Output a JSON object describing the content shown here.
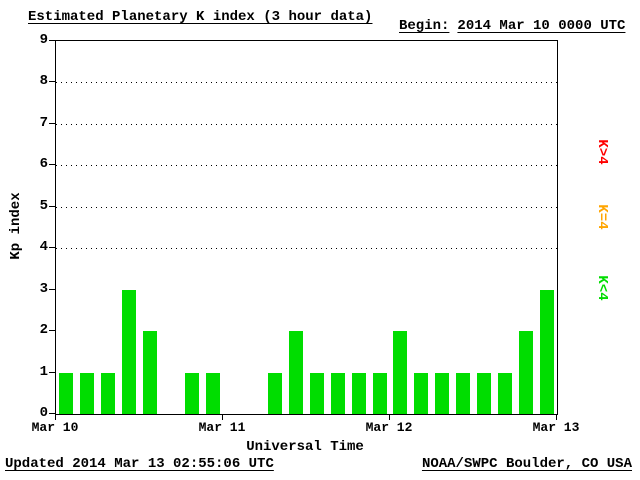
{
  "header": {
    "title": "Estimated Planetary K index (3 hour data)",
    "begin_label": "Begin:",
    "begin_value": "2014 Mar 10 0000 UTC"
  },
  "footer": {
    "updated": "Updated 2014 Mar 13 02:55:06 UTC",
    "source": "NOAA/SWPC Boulder, CO USA"
  },
  "legend": {
    "items": [
      {
        "label": "K>4",
        "color": "#ff0000"
      },
      {
        "label": "K=4",
        "color": "#ffa500"
      },
      {
        "label": "K<4",
        "color": "#00dd00"
      }
    ]
  },
  "chart_data": {
    "type": "bar",
    "title": "Estimated Planetary K index (3 hour data)",
    "xlabel": "Universal Time",
    "ylabel": "Kp index",
    "ylim": [
      0,
      9
    ],
    "yticks": [
      0,
      1,
      2,
      3,
      4,
      5,
      6,
      7,
      8,
      9
    ],
    "gridlines_y": [
      4,
      5,
      6,
      7,
      8
    ],
    "x_tick_labels": [
      "Mar 10",
      "Mar 11",
      "Mar 12",
      "Mar 13"
    ],
    "begin": "2014 Mar 10 0000 UTC",
    "slot_hours": 3,
    "values": [
      1,
      1,
      1,
      3,
      2,
      0,
      1,
      1,
      0,
      0,
      1,
      2,
      1,
      1,
      1,
      1,
      2,
      1,
      1,
      1,
      1,
      1,
      2,
      3
    ],
    "color_rules": {
      "below_4": "#00dd00",
      "equal_4": "#ffa500",
      "above_4": "#ff0000"
    },
    "grid": true,
    "legend_position": "right"
  }
}
